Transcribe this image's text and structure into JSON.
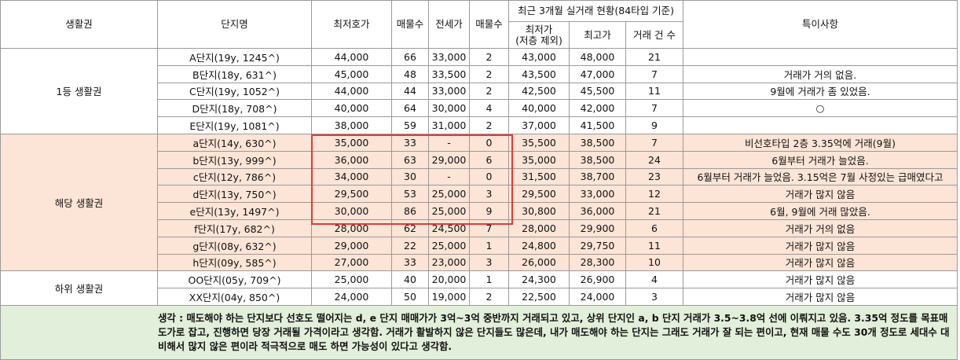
{
  "headers": {
    "region": "생활권",
    "complex": "단지명",
    "min_ask": "최저호가",
    "listings": "매물수",
    "jeonse": "전세가",
    "listings2": "매물수",
    "recent_group": "최근 3개월 실거래 현황(84타입 기준)",
    "recent_min": "최저가\n(저층 제외)",
    "recent_max": "최고가",
    "trade_count": "거래 건 수",
    "notes": "특이사항"
  },
  "groups": [
    {
      "name": "1등 생활권",
      "highlight": false,
      "rows": [
        {
          "complex": "A단지(19y, 1245^)",
          "min_ask": "44,000",
          "listings": "66",
          "jeonse": "33,000",
          "listings2": "2",
          "recent_min": "43,000",
          "recent_max": "48,000",
          "count": "21",
          "note": ""
        },
        {
          "complex": "B단지(18y, 631^)",
          "min_ask": "45,000",
          "listings": "48",
          "jeonse": "33,500",
          "listings2": "2",
          "recent_min": "43,500",
          "recent_max": "47,000",
          "count": "7",
          "note": "거래가 거의 없음."
        },
        {
          "complex": "C단지(19y, 1052^)",
          "min_ask": "44,000",
          "listings": "44",
          "jeonse": "33,000",
          "listings2": "2",
          "recent_min": "42,500",
          "recent_max": "45,500",
          "count": "11",
          "note": "9월에 거래가 좀 있었음."
        },
        {
          "complex": "D단지(18y, 708^)",
          "min_ask": "40,000",
          "listings": "64",
          "jeonse": "30,000",
          "listings2": "4",
          "recent_min": "40,000",
          "recent_max": "42,000",
          "count": "7",
          "note": "○"
        },
        {
          "complex": "E단지(19y, 1081^)",
          "min_ask": "38,000",
          "listings": "59",
          "jeonse": "31,000",
          "listings2": "2",
          "recent_min": "37,000",
          "recent_max": "41,500",
          "count": "9",
          "note": ""
        }
      ]
    },
    {
      "name": "해당 생활권",
      "highlight": true,
      "rows": [
        {
          "complex": "a단지(14y, 630^)",
          "min_ask": "35,000",
          "listings": "33",
          "jeonse": "-",
          "listings2": "0",
          "recent_min": "35,500",
          "recent_max": "38,500",
          "count": "7",
          "note": "비선호타입 2층 3.35억에 거래(9월)"
        },
        {
          "complex": "b단지(13y, 999^)",
          "min_ask": "36,000",
          "listings": "63",
          "jeonse": "29,000",
          "listings2": "6",
          "recent_min": "35,000",
          "recent_max": "38,500",
          "count": "24",
          "note": "6월부터 거래가 늘었음."
        },
        {
          "complex": "c단지(12y, 786^)",
          "min_ask": "34,000",
          "listings": "30",
          "jeonse": "-",
          "listings2": "0",
          "recent_min": "31,500",
          "recent_max": "38,700",
          "count": "23",
          "note": "6월부터 거래가 늘었음. 3.15억은 7월 사정있는 급매였다고"
        },
        {
          "complex": "d단지(13y, 750^)",
          "min_ask": "29,500",
          "listings": "53",
          "jeonse": "25,000",
          "listings2": "3",
          "recent_min": "29,500",
          "recent_max": "33,000",
          "count": "12",
          "note": "거래가 많지 않음"
        },
        {
          "complex": "e단지(13y, 1497^)",
          "min_ask": "30,000",
          "listings": "86",
          "jeonse": "25,000",
          "listings2": "9",
          "recent_min": "30,800",
          "recent_max": "36,000",
          "count": "21",
          "note": "6월, 9월에 거래 많았음."
        },
        {
          "complex": "f단지(17y, 682^)",
          "min_ask": "28,000",
          "listings": "62",
          "jeonse": "24,500",
          "listings2": "7",
          "recent_min": "28,000",
          "recent_max": "29,900",
          "count": "6",
          "note": "거래가 거의 없음"
        },
        {
          "complex": "g단지(08y, 632^)",
          "min_ask": "29,000",
          "listings": "22",
          "jeonse": "25,000",
          "listings2": "1",
          "recent_min": "24,800",
          "recent_max": "29,750",
          "count": "11",
          "note": "거래가 많지 않음"
        },
        {
          "complex": "h단지(09y, 585^)",
          "min_ask": "27,000",
          "listings": "33",
          "jeonse": "23,000",
          "listings2": "3",
          "recent_min": "26,000",
          "recent_max": "28,300",
          "count": "10",
          "note": "거래가 많지 않음"
        }
      ]
    },
    {
      "name": "하위 생활권",
      "highlight": false,
      "rows": [
        {
          "complex": "OO단지(05y, 709^)",
          "min_ask": "25,000",
          "listings": "40",
          "jeonse": "20,000",
          "listings2": "1",
          "recent_min": "24,300",
          "recent_max": "26,900",
          "count": "4",
          "note": "거래가 많지 않음"
        },
        {
          "complex": "XX단지(04y, 850^)",
          "min_ask": "24,000",
          "listings": "50",
          "jeonse": "19,000",
          "listings2": "2",
          "recent_min": "22,500",
          "recent_max": "24,000",
          "count": "3",
          "note": "거래가 많지 않음"
        }
      ]
    }
  ],
  "footer": "생각 : 매도해야 하는 단지보다 선호도 떨어지는 d, e 단지 매매가가 3억~3억 중반까지 거래되고 있고, 상위 단지인 a, b 단지 거래가 3.5~3.8억 선에 이뤄지고 있음. 3.35억 정도를 목표매도가로 잡고, 진행하면 당장 거래될 가격이라고 생각함. 거래가 활발하지 않은 단지들도 많은데, 내가 매도해야 하는 단지는 그래도 거래가 잘 되는 편이고, 현재 매물 수도 30개 정도로 세대수 대비해서 많지 않은 편이라 적극적으로 매도 하면 가능성이 있다고 생각함.",
  "colors": {
    "highlight_bg": "#fce4d6",
    "footer_bg": "#e2efda",
    "red_box": "#e53935",
    "grid": "#9a9a9a"
  }
}
